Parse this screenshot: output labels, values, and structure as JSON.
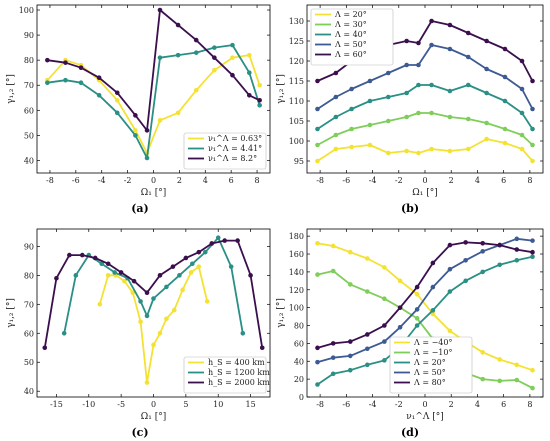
{
  "chart_data": [
    {
      "panel": "a",
      "type": "line",
      "xlabel": "Ω₁ [°]",
      "ylabel": "γ₁,₂ [°]",
      "xlim": [
        -9,
        9
      ],
      "ylim": [
        35,
        102
      ],
      "xticks": [
        "-8",
        "-6",
        "-4",
        "-2",
        "0",
        "2",
        "4",
        "6",
        "8"
      ],
      "xtick_values": [
        -8,
        -6,
        -4,
        -2,
        0,
        2,
        4,
        6,
        8
      ],
      "yticks": [
        "40",
        "50",
        "60",
        "70",
        "80",
        "90",
        "100"
      ],
      "ytick_values": [
        40,
        50,
        60,
        70,
        80,
        90,
        100
      ],
      "legend_position": "lower-right",
      "series": [
        {
          "name": "ν₁^Λ = 0.63°",
          "color": "#f4e232",
          "x": [
            -8.2,
            -6.8,
            -5.6,
            -4.2,
            -2.8,
            -1.4,
            -0.5,
            0.5,
            1.9,
            3.3,
            4.7,
            6.1,
            7.4,
            8.2
          ],
          "y": [
            72,
            80,
            78,
            72,
            64,
            52,
            43,
            56,
            59,
            68,
            76,
            81,
            82,
            70
          ]
        },
        {
          "name": "ν₁^Λ = 4.41°",
          "color": "#2a8f84",
          "x": [
            -8.2,
            -6.8,
            -5.6,
            -4.2,
            -2.8,
            -1.4,
            -0.5,
            0.5,
            1.9,
            3.3,
            4.7,
            6.1,
            7.4,
            8.2
          ],
          "y": [
            71,
            72,
            71,
            66,
            59,
            50,
            41,
            81,
            82,
            83,
            85,
            86,
            75,
            62
          ]
        },
        {
          "name": "ν₁^Λ = 8.2°",
          "color": "#3b0f4e",
          "x": [
            -8.2,
            -6.8,
            -5.6,
            -4.2,
            -2.8,
            -1.4,
            -0.5,
            0.5,
            1.9,
            3.3,
            4.7,
            6.1,
            7.4,
            8.2
          ],
          "y": [
            80,
            79,
            77,
            73,
            67,
            58,
            52,
            100,
            94,
            88,
            81,
            74,
            66,
            64
          ]
        }
      ]
    },
    {
      "panel": "b",
      "type": "line",
      "xlabel": "Ω₁ [°]",
      "ylabel": "γ₁,₂ [°]",
      "xlim": [
        -9,
        9
      ],
      "ylim": [
        92,
        134
      ],
      "xticks": [
        "-8",
        "-6",
        "-4",
        "-2",
        "0",
        "2",
        "4",
        "6",
        "8"
      ],
      "xtick_values": [
        -8,
        -6,
        -4,
        -2,
        0,
        2,
        4,
        6,
        8
      ],
      "yticks": [
        "95",
        "100",
        "105",
        "110",
        "115",
        "120",
        "125",
        "130"
      ],
      "ytick_values": [
        95,
        100,
        105,
        110,
        115,
        120,
        125,
        130
      ],
      "legend_position": "top-left",
      "series": [
        {
          "name": "Λ = 20°",
          "color": "#f4e232",
          "x": [
            -8.2,
            -6.8,
            -5.6,
            -4.2,
            -2.8,
            -1.4,
            -0.5,
            0.5,
            1.9,
            3.3,
            4.7,
            6.1,
            7.4,
            8.2
          ],
          "y": [
            95,
            98,
            98.5,
            99,
            97,
            97.5,
            97,
            98,
            97.5,
            98,
            100.5,
            99.5,
            98,
            95
          ]
        },
        {
          "name": "Λ = 30°",
          "color": "#7fcd5a",
          "x": [
            -8.2,
            -6.8,
            -5.6,
            -4.2,
            -2.8,
            -1.4,
            -0.5,
            0.5,
            1.9,
            3.3,
            4.7,
            6.1,
            7.4,
            8.2
          ],
          "y": [
            99,
            101.5,
            103,
            104,
            105,
            106,
            107,
            107,
            106,
            105.5,
            104.5,
            103,
            101.5,
            99
          ]
        },
        {
          "name": "Λ = 40°",
          "color": "#2a8f84",
          "x": [
            -8.2,
            -6.8,
            -5.6,
            -4.2,
            -2.8,
            -1.4,
            -0.5,
            0.5,
            1.9,
            3.3,
            4.7,
            6.1,
            7.4,
            8.2
          ],
          "y": [
            103,
            106,
            108,
            110,
            111,
            112,
            114,
            114,
            112.5,
            114,
            112,
            110,
            107,
            103
          ]
        },
        {
          "name": "Λ = 50°",
          "color": "#3e5a93",
          "x": [
            -8.2,
            -6.8,
            -5.6,
            -4.2,
            -2.8,
            -1.4,
            -0.5,
            0.5,
            1.9,
            3.3,
            4.7,
            6.1,
            7.4,
            8.2
          ],
          "y": [
            108,
            111,
            113,
            115,
            117,
            119,
            119,
            124,
            123,
            121,
            118,
            116,
            113,
            108
          ]
        },
        {
          "name": "Λ = 60°",
          "color": "#3b0f4e",
          "x": [
            -8.2,
            -6.8,
            -5.6,
            -4.2,
            -2.8,
            -1.4,
            -0.5,
            0.5,
            1.9,
            3.3,
            4.7,
            6.1,
            7.4,
            8.2
          ],
          "y": [
            115,
            117,
            120,
            122,
            124,
            125,
            124.5,
            130,
            129,
            127,
            125,
            123,
            120,
            115
          ]
        }
      ]
    },
    {
      "panel": "c",
      "type": "line",
      "xlabel": "Ω₁ [°]",
      "ylabel": "γ₁,₂ [°]",
      "xlim": [
        -18,
        18
      ],
      "ylim": [
        38,
        96
      ],
      "xticks": [
        "-15",
        "-10",
        "-5",
        "0",
        "5",
        "10",
        "15"
      ],
      "xtick_values": [
        -15,
        -10,
        -5,
        0,
        5,
        10,
        15
      ],
      "yticks": [
        "40",
        "50",
        "60",
        "70",
        "80",
        "90"
      ],
      "ytick_values": [
        40,
        50,
        60,
        70,
        80,
        90
      ],
      "legend_position": "lower-right",
      "series": [
        {
          "name": "h_S = 400 km",
          "color": "#f4e232",
          "x": [
            -8.3,
            -7,
            -5.8,
            -4.5,
            -3.2,
            -2,
            -1,
            0,
            1,
            2,
            3.2,
            4.5,
            5.8,
            7,
            8.3
          ],
          "y": [
            70,
            80,
            80,
            78,
            74,
            64,
            43,
            56,
            60,
            65,
            68,
            75,
            81,
            83,
            71
          ]
        },
        {
          "name": "h_S = 1200 km",
          "color": "#2a8f84",
          "x": [
            -13.8,
            -12,
            -10,
            -8,
            -6,
            -4,
            -2,
            -1,
            0,
            2,
            4,
            6,
            8,
            10,
            12,
            13.8
          ],
          "y": [
            60,
            80,
            87,
            84,
            81,
            79,
            71,
            66,
            72,
            76,
            80,
            84,
            88,
            93,
            83,
            60
          ]
        },
        {
          "name": "h_S = 2000 km",
          "color": "#3b0f4e",
          "x": [
            -16.8,
            -15,
            -13,
            -11,
            -9,
            -7,
            -5,
            -3,
            -1,
            1,
            3,
            5,
            7,
            9,
            11,
            13,
            15,
            16.8
          ],
          "y": [
            55,
            79,
            87,
            87,
            86,
            84,
            81,
            78,
            74,
            80,
            83,
            86,
            88,
            91,
            92,
            92,
            80,
            55
          ]
        }
      ]
    },
    {
      "panel": "d",
      "type": "line",
      "xlabel": "ν₁^Λ [°]",
      "ylabel": "γ₁,₂ [°]",
      "xlim": [
        -9,
        9
      ],
      "ylim": [
        0,
        188
      ],
      "xticks": [
        "-8",
        "-6",
        "-4",
        "-2",
        "0",
        "2",
        "4",
        "6",
        "8"
      ],
      "xtick_values": [
        -8,
        -6,
        -4,
        -2,
        0,
        2,
        4,
        6,
        8
      ],
      "yticks": [
        "0",
        "20",
        "40",
        "60",
        "80",
        "100",
        "120",
        "140",
        "160",
        "180"
      ],
      "ytick_values": [
        0,
        20,
        40,
        60,
        80,
        100,
        120,
        140,
        160,
        180
      ],
      "legend_position": "bottom-center",
      "series": [
        {
          "name": "Λ = −40°",
          "color": "#f4e232",
          "x": [
            -8.2,
            -7,
            -5.7,
            -4.4,
            -3.1,
            -1.9,
            -0.6,
            0.6,
            1.9,
            3.1,
            4.4,
            5.7,
            7,
            8.2
          ],
          "y": [
            172,
            169,
            162,
            155,
            145,
            130,
            115,
            93,
            74,
            62,
            50,
            42,
            36,
            30
          ]
        },
        {
          "name": "Λ = −10°",
          "color": "#7fcd5a",
          "x": [
            -8.2,
            -7,
            -5.7,
            -4.4,
            -3.1,
            -1.9,
            -0.6,
            0.6,
            1.9,
            3.1,
            4.4,
            5.7,
            7,
            8.2
          ],
          "y": [
            137,
            141,
            126,
            118,
            110,
            100,
            88,
            65,
            42,
            27,
            20,
            18,
            19,
            10
          ]
        },
        {
          "name": "Λ = 20°",
          "color": "#2a8f84",
          "x": [
            -8.2,
            -7,
            -5.7,
            -4.4,
            -3.1,
            -1.9,
            -0.6,
            0.6,
            1.9,
            3.1,
            4.4,
            5.7,
            7,
            8.2
          ],
          "y": [
            14,
            26,
            30,
            36,
            41,
            56,
            80,
            97,
            118,
            130,
            140,
            148,
            153,
            157
          ]
        },
        {
          "name": "Λ = 50°",
          "color": "#3e5a93",
          "x": [
            -8.2,
            -7,
            -5.7,
            -4.4,
            -3.1,
            -1.9,
            -0.6,
            0.6,
            1.9,
            3.1,
            4.4,
            5.7,
            7,
            8.2
          ],
          "y": [
            39,
            44,
            46,
            54,
            62,
            78,
            98,
            123,
            143,
            153,
            163,
            170,
            177,
            175
          ]
        },
        {
          "name": "Λ = 80°",
          "color": "#3b0f4e",
          "x": [
            -8.2,
            -7,
            -5.7,
            -4.4,
            -3.1,
            -1.9,
            -0.6,
            0.6,
            1.9,
            3.1,
            4.4,
            5.7,
            7,
            8.2
          ],
          "y": [
            55,
            60,
            62,
            70,
            80,
            100,
            123,
            150,
            170,
            173,
            172,
            170,
            165,
            162
          ]
        }
      ]
    }
  ],
  "panel_labels": [
    "(a)",
    "(b)",
    "(c)",
    "(d)"
  ]
}
